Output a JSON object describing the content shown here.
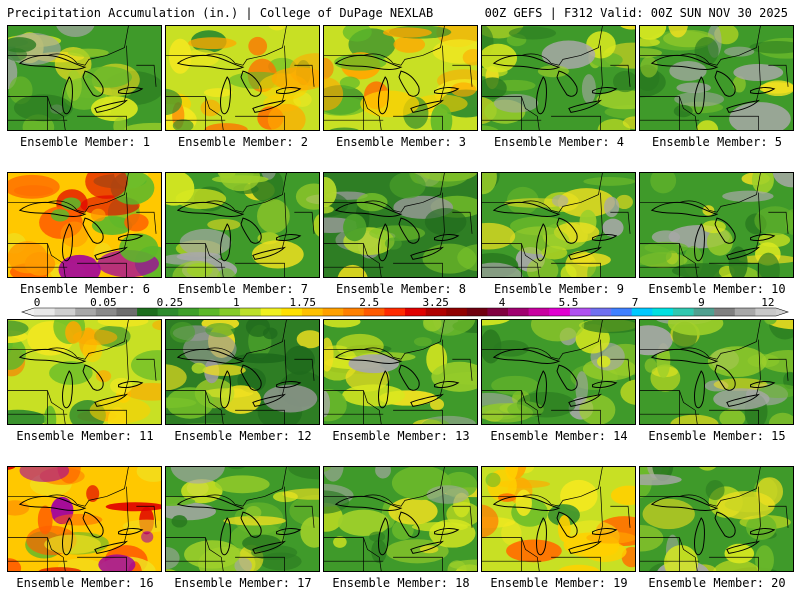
{
  "header": {
    "left": "Precipitation Accumulation (in.) | College of DuPage NEXLAB",
    "right": "00Z GEFS | F312 Valid: 00Z SUN NOV 30 2025"
  },
  "members": [
    {
      "label": "Ensemble Member: 1",
      "theme": "green"
    },
    {
      "label": "Ensemble Member: 2",
      "theme": "yellow"
    },
    {
      "label": "Ensemble Member: 3",
      "theme": "yellow"
    },
    {
      "label": "Ensemble Member: 4",
      "theme": "green"
    },
    {
      "label": "Ensemble Member: 5",
      "theme": "green"
    },
    {
      "label": "Ensemble Member: 6",
      "theme": "orange"
    },
    {
      "label": "Ensemble Member: 7",
      "theme": "green"
    },
    {
      "label": "Ensemble Member: 8",
      "theme": "darkgreen"
    },
    {
      "label": "Ensemble Member: 9",
      "theme": "green"
    },
    {
      "label": "Ensemble Member: 10",
      "theme": "green"
    },
    {
      "label": "Ensemble Member: 11",
      "theme": "yellow"
    },
    {
      "label": "Ensemble Member: 12",
      "theme": "darkgreen"
    },
    {
      "label": "Ensemble Member: 13",
      "theme": "green"
    },
    {
      "label": "Ensemble Member: 14",
      "theme": "green"
    },
    {
      "label": "Ensemble Member: 15",
      "theme": "green"
    },
    {
      "label": "Ensemble Member: 16",
      "theme": "orange"
    },
    {
      "label": "Ensemble Member: 17",
      "theme": "green"
    },
    {
      "label": "Ensemble Member: 18",
      "theme": "green"
    },
    {
      "label": "Ensemble Member: 19",
      "theme": "yellow"
    },
    {
      "label": "Ensemble Member: 20",
      "theme": "green"
    }
  ],
  "colorbar": {
    "labels": [
      "0",
      "0.05",
      "0.25",
      "1",
      "1.75",
      "2.5",
      "3.25",
      "4",
      "5.5",
      "7",
      "9",
      "12"
    ],
    "colors": [
      "#e8e8e8",
      "#cfcfcf",
      "#a8a8a8",
      "#8a8a8a",
      "#6e6e6e",
      "#1e6e1e",
      "#2e8b2e",
      "#3fa02a",
      "#5cb82a",
      "#86cc2a",
      "#bde02a",
      "#f0f020",
      "#ffe000",
      "#ffc000",
      "#ffa000",
      "#ff8000",
      "#ff5a00",
      "#ff2a00",
      "#e00000",
      "#b00000",
      "#900000",
      "#700010",
      "#800040",
      "#a00070",
      "#c800a0",
      "#e000d0",
      "#b050f0",
      "#7070f0",
      "#4080ff",
      "#00c8ff",
      "#00e0e0",
      "#30c8b0",
      "#50a090",
      "#808080",
      "#a8a8a8",
      "#c8c8c8"
    ]
  },
  "palettes": {
    "green": {
      "bg": "#3f9a2a",
      "spots": [
        "#2a7a20",
        "#6ab82a",
        "#9ed02a",
        "#d8e820",
        "#f0e020",
        "#a8a8a8"
      ]
    },
    "darkgreen": {
      "bg": "#2e7e24",
      "spots": [
        "#1f6a1c",
        "#4aa02a",
        "#7ac42a",
        "#b8dc2a",
        "#9a9a9a",
        "#f0e020"
      ]
    },
    "yellow": {
      "bg": "#c8e024",
      "spots": [
        "#f2e820",
        "#ffd000",
        "#ffa800",
        "#5cb82a",
        "#2e8b2e",
        "#ff7000"
      ]
    },
    "orange": {
      "bg": "#ffc800",
      "spots": [
        "#ff9a00",
        "#ff6000",
        "#e00000",
        "#f0e020",
        "#5cb82a",
        "#a000a0"
      ]
    }
  }
}
